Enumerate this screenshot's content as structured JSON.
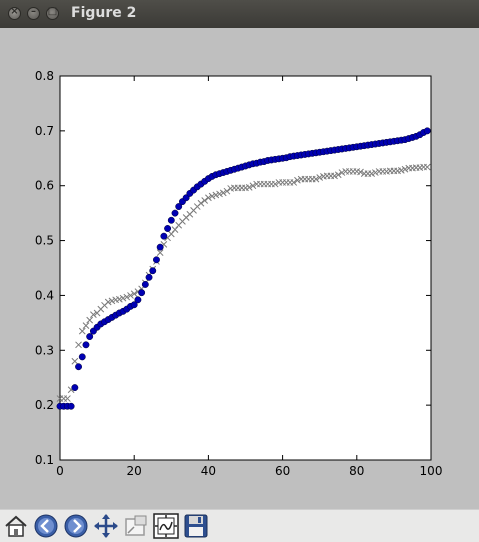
{
  "window": {
    "title": "Figure 2"
  },
  "toolbar": {
    "buttons": [
      {
        "name": "home",
        "icon": "home-icon"
      },
      {
        "name": "back",
        "icon": "back-arrow-icon"
      },
      {
        "name": "forward",
        "icon": "forward-arrow-icon"
      },
      {
        "name": "pan",
        "icon": "pan-icon"
      },
      {
        "name": "zoom",
        "icon": "zoom-icon"
      },
      {
        "name": "configure-subplots",
        "icon": "subplots-icon"
      },
      {
        "name": "save",
        "icon": "save-icon"
      }
    ]
  },
  "chart_data": {
    "type": "scatter",
    "title": "",
    "xlabel": "",
    "ylabel": "",
    "xlim": [
      0,
      100
    ],
    "ylim": [
      0.1,
      0.8
    ],
    "xticks": [
      "0",
      "20",
      "40",
      "60",
      "80",
      "100"
    ],
    "yticks": [
      "0.1",
      "0.2",
      "0.3",
      "0.4",
      "0.5",
      "0.6",
      "0.7",
      "0.8"
    ],
    "grid": false,
    "series": [
      {
        "marker": "circle",
        "color": "#0000b3",
        "x": [
          0,
          1,
          2,
          3,
          4,
          5,
          6,
          7,
          8,
          9,
          10,
          11,
          12,
          13,
          14,
          15,
          16,
          17,
          18,
          19,
          20,
          21,
          22,
          23,
          24,
          25,
          26,
          27,
          28,
          29,
          30,
          31,
          32,
          33,
          34,
          35,
          36,
          37,
          38,
          39,
          40,
          41,
          42,
          43,
          44,
          45,
          46,
          47,
          48,
          49,
          50,
          51,
          52,
          53,
          54,
          55,
          56,
          57,
          58,
          59,
          60,
          61,
          62,
          63,
          64,
          65,
          66,
          67,
          68,
          69,
          70,
          71,
          72,
          73,
          74,
          75,
          76,
          77,
          78,
          79,
          80,
          81,
          82,
          83,
          84,
          85,
          86,
          87,
          88,
          89,
          90,
          91,
          92,
          93,
          94,
          95,
          96,
          97,
          98,
          99
        ],
        "y": [
          0.198,
          0.198,
          0.198,
          0.198,
          0.232,
          0.27,
          0.288,
          0.31,
          0.325,
          0.335,
          0.342,
          0.348,
          0.352,
          0.356,
          0.36,
          0.364,
          0.368,
          0.371,
          0.375,
          0.38,
          0.383,
          0.392,
          0.405,
          0.42,
          0.433,
          0.445,
          0.465,
          0.488,
          0.508,
          0.522,
          0.537,
          0.55,
          0.562,
          0.571,
          0.578,
          0.586,
          0.592,
          0.598,
          0.603,
          0.608,
          0.613,
          0.617,
          0.62,
          0.622,
          0.624,
          0.626,
          0.628,
          0.63,
          0.632,
          0.634,
          0.636,
          0.638,
          0.64,
          0.641,
          0.643,
          0.644,
          0.646,
          0.647,
          0.648,
          0.649,
          0.65,
          0.651,
          0.653,
          0.654,
          0.655,
          0.656,
          0.657,
          0.658,
          0.659,
          0.66,
          0.661,
          0.662,
          0.663,
          0.664,
          0.665,
          0.666,
          0.667,
          0.668,
          0.669,
          0.67,
          0.671,
          0.672,
          0.673,
          0.674,
          0.675,
          0.676,
          0.677,
          0.678,
          0.679,
          0.68,
          0.681,
          0.682,
          0.683,
          0.684,
          0.686,
          0.688,
          0.69,
          0.693,
          0.697,
          0.7
        ]
      },
      {
        "marker": "x",
        "color": "#7a7a7a",
        "x": [
          0,
          1,
          2,
          3,
          4,
          5,
          6,
          7,
          8,
          9,
          10,
          11,
          12,
          13,
          14,
          15,
          16,
          17,
          18,
          19,
          20,
          21,
          22,
          23,
          24,
          25,
          26,
          27,
          28,
          29,
          30,
          31,
          32,
          33,
          34,
          35,
          36,
          37,
          38,
          39,
          40,
          41,
          42,
          43,
          44,
          45,
          46,
          47,
          48,
          49,
          50,
          51,
          52,
          53,
          54,
          55,
          56,
          57,
          58,
          59,
          60,
          61,
          62,
          63,
          64,
          65,
          66,
          67,
          68,
          69,
          70,
          71,
          72,
          73,
          74,
          75,
          76,
          77,
          78,
          79,
          80,
          81,
          82,
          83,
          84,
          85,
          86,
          87,
          88,
          89,
          90,
          91,
          92,
          93,
          94,
          95,
          96,
          97,
          98,
          99
        ],
        "y": [
          0.212,
          0.212,
          0.212,
          0.228,
          0.28,
          0.31,
          0.335,
          0.345,
          0.355,
          0.365,
          0.368,
          0.375,
          0.382,
          0.388,
          0.39,
          0.392,
          0.393,
          0.395,
          0.397,
          0.4,
          0.403,
          0.407,
          0.412,
          0.423,
          0.437,
          0.448,
          0.462,
          0.478,
          0.493,
          0.505,
          0.512,
          0.52,
          0.528,
          0.535,
          0.542,
          0.548,
          0.555,
          0.562,
          0.568,
          0.573,
          0.578,
          0.581,
          0.583,
          0.585,
          0.587,
          0.59,
          0.595,
          0.596,
          0.596,
          0.596,
          0.596,
          0.597,
          0.6,
          0.603,
          0.603,
          0.603,
          0.603,
          0.603,
          0.603,
          0.606,
          0.606,
          0.606,
          0.606,
          0.606,
          0.61,
          0.612,
          0.612,
          0.612,
          0.612,
          0.612,
          0.615,
          0.617,
          0.618,
          0.618,
          0.618,
          0.62,
          0.624,
          0.626,
          0.626,
          0.626,
          0.626,
          0.625,
          0.622,
          0.622,
          0.622,
          0.624,
          0.626,
          0.626,
          0.626,
          0.627,
          0.627,
          0.627,
          0.628,
          0.63,
          0.632,
          0.632,
          0.633,
          0.633,
          0.634,
          0.634
        ]
      }
    ]
  }
}
